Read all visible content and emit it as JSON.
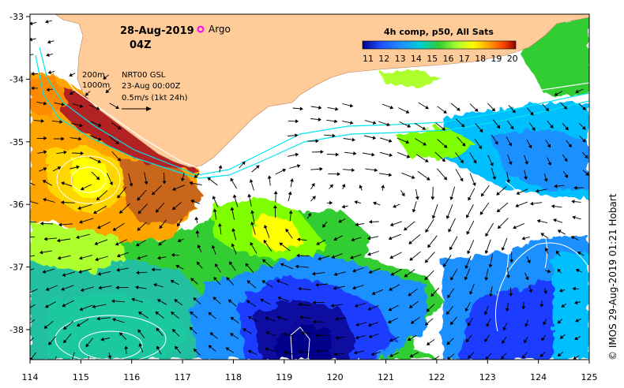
{
  "header": {
    "date": "28-Aug-2019",
    "time": "04Z",
    "argo_label": "Argo"
  },
  "composite": {
    "title": "4h comp, p50, All Sats",
    "scale_labels": [
      "11",
      "12",
      "13",
      "14",
      "15",
      "16",
      "17",
      "18",
      "19",
      "20"
    ],
    "colors": [
      "#00008b",
      "#0000cd",
      "#1e4fff",
      "#1e90ff",
      "#00bfff",
      "#00ced1",
      "#20b2aa",
      "#2e8b57",
      "#32cd32",
      "#7fff00",
      "#adff2f",
      "#ffff00",
      "#ffd700",
      "#ffa500",
      "#ff8c00",
      "#ff4500",
      "#b22222",
      "#8b0000"
    ]
  },
  "legend": {
    "contour_200": "200m",
    "contour_1000": "1000m",
    "altimetry": "NRT00 GSL",
    "altimetry_date": "23-Aug 00:00Z",
    "velocity_scale": "0.5m/s (1kt 24h)"
  },
  "axes": {
    "x_ticks": [
      "114",
      "115",
      "116",
      "117",
      "118",
      "119",
      "120",
      "121",
      "122",
      "123",
      "124",
      "125"
    ],
    "y_ticks": [
      "-33",
      "-34",
      "-35",
      "-36",
      "-37",
      "-38"
    ]
  },
  "credit": "© IMOS 29-Aug-2019 01:21 Hobart",
  "colors": {
    "land": "#ffcc99",
    "isobath_200": "#ffffff",
    "isobath_1000": "#00e5ee",
    "argo": "#ff00ff"
  }
}
